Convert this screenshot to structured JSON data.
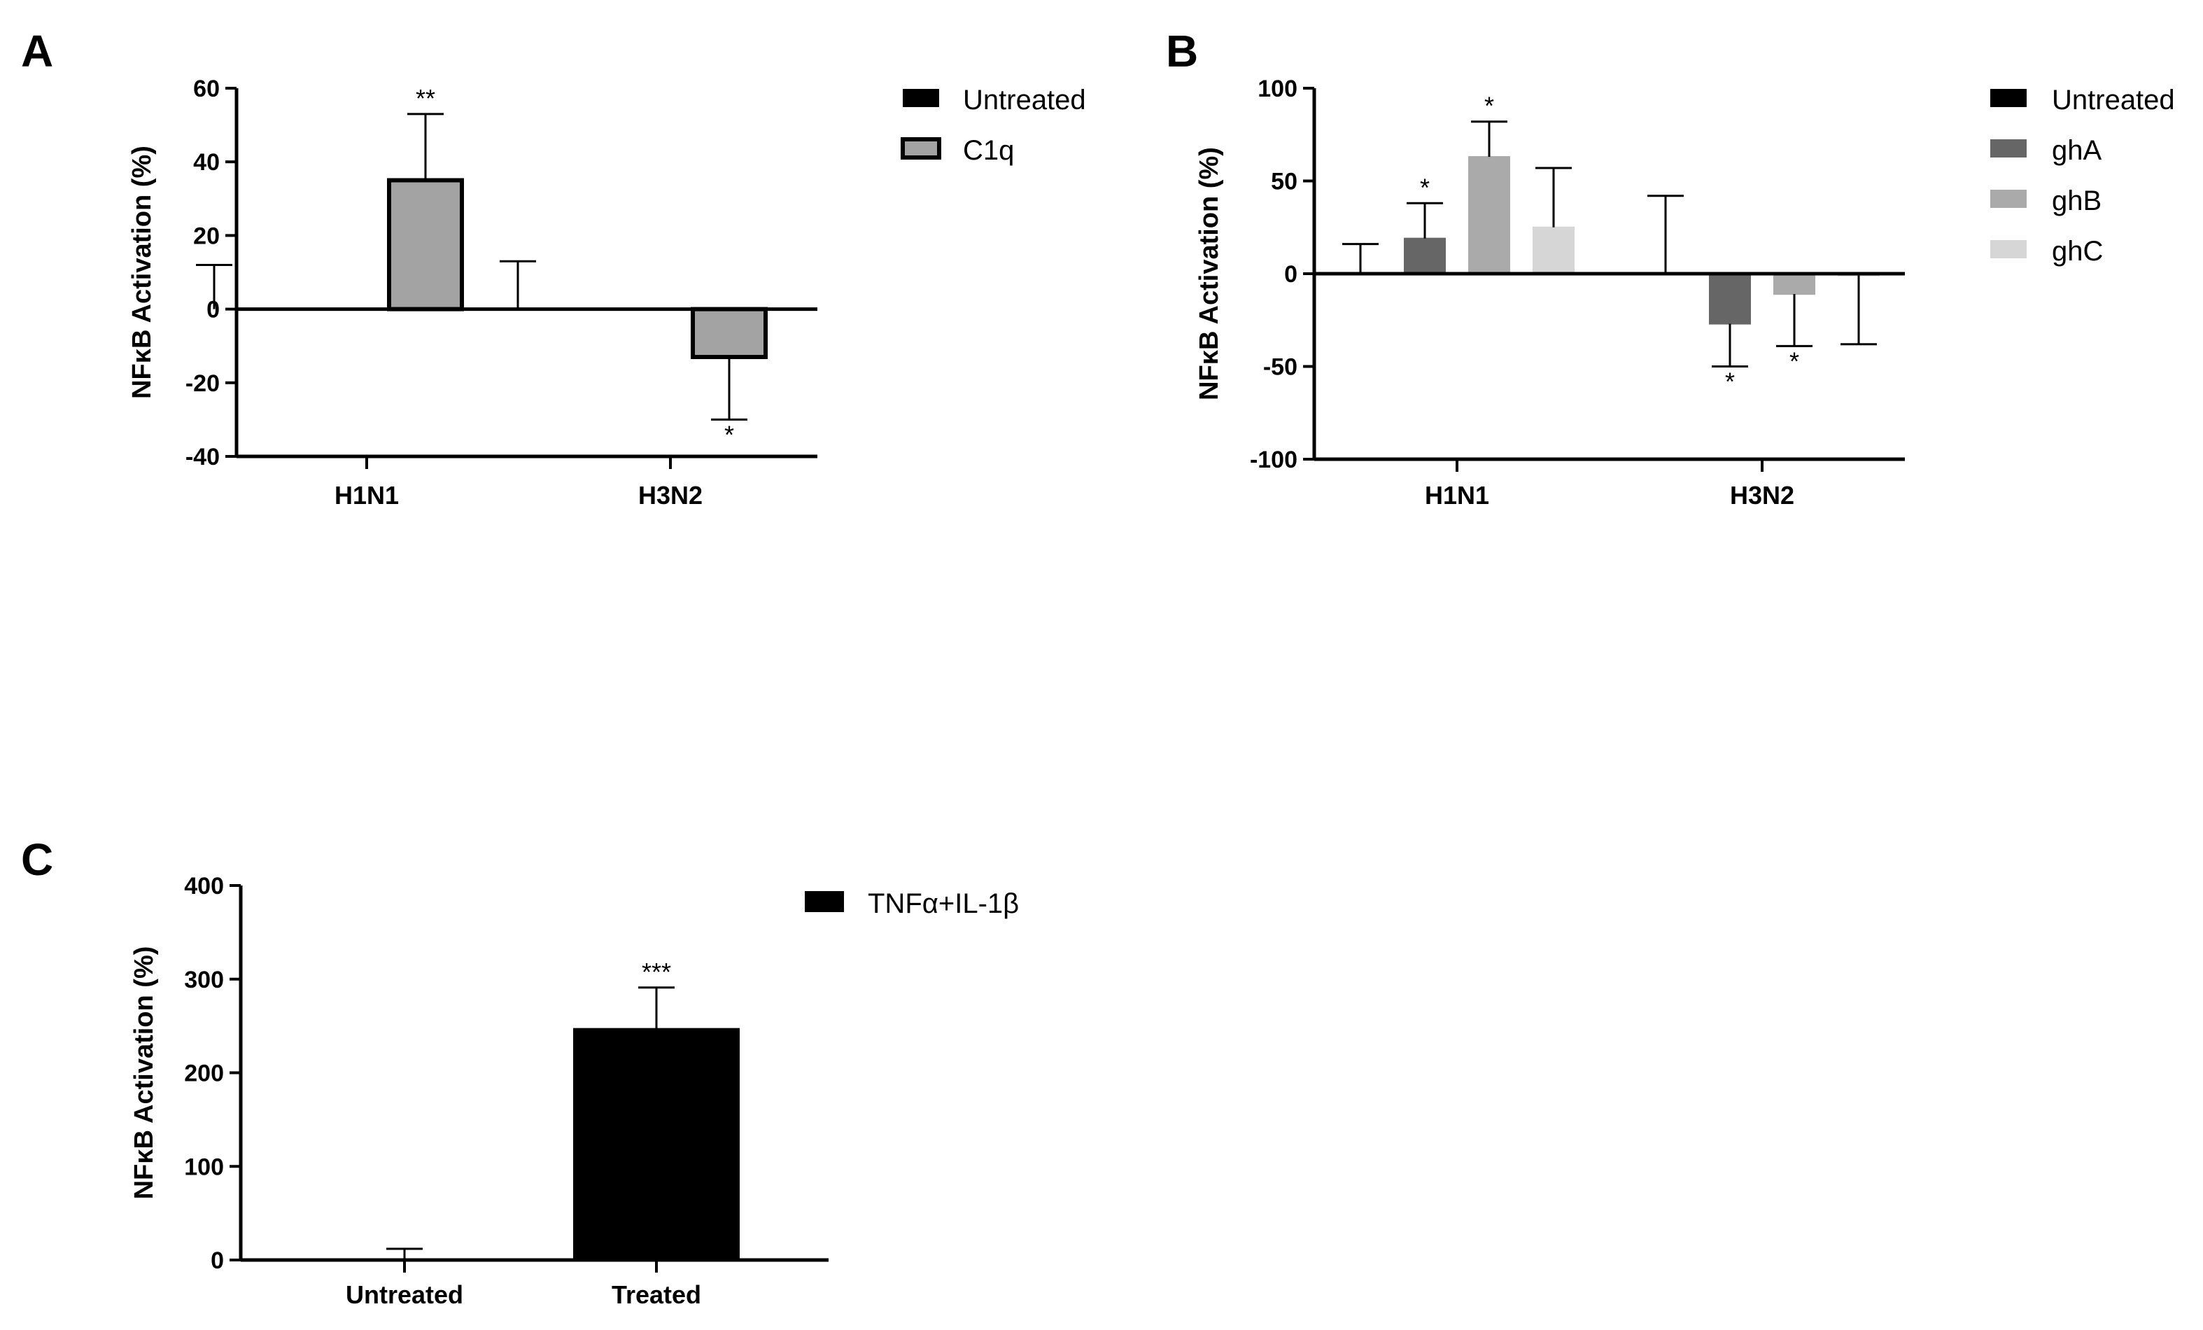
{
  "chart_data": [
    {
      "panel": "A",
      "type": "bar",
      "title": "",
      "xlabel": "",
      "ylabel": "NFκB Activation (%)",
      "ylim": [
        -40,
        60
      ],
      "yticks": [
        -40,
        -20,
        0,
        20,
        40,
        60
      ],
      "categories": [
        "H1N1",
        "H3N2"
      ],
      "legend_position": "top-right",
      "series": [
        {
          "name": "Untreated",
          "color": "#000000",
          "values": [
            0,
            0
          ],
          "errors": [
            12,
            13
          ],
          "significance": [
            "",
            ""
          ]
        },
        {
          "name": "C1q",
          "color": "#a3a3a3",
          "values": [
            35,
            -13
          ],
          "errors": [
            18,
            17
          ],
          "significance": [
            "**",
            "*"
          ]
        }
      ]
    },
    {
      "panel": "B",
      "type": "bar",
      "title": "",
      "xlabel": "",
      "ylabel": "NFκB Activation (%)",
      "ylim": [
        -100,
        100
      ],
      "yticks": [
        -100,
        -50,
        0,
        50,
        100
      ],
      "categories": [
        "H1N1",
        "H3N2"
      ],
      "legend_position": "top-right",
      "series": [
        {
          "name": "Untreated",
          "color": "#000000",
          "values": [
            0,
            0
          ],
          "errors": [
            16,
            42
          ],
          "significance": [
            "",
            ""
          ]
        },
        {
          "name": "ghA",
          "color": "#666666",
          "values": [
            19,
            -27
          ],
          "errors": [
            19,
            23
          ],
          "significance": [
            "*",
            "*"
          ]
        },
        {
          "name": "ghB",
          "color": "#aaaaaa",
          "values": [
            63,
            -11
          ],
          "errors": [
            19,
            28
          ],
          "significance": [
            "*",
            "*"
          ]
        },
        {
          "name": "ghC",
          "color": "#d6d6d6",
          "values": [
            25,
            -1
          ],
          "errors": [
            32,
            37
          ],
          "significance": [
            "",
            ""
          ]
        }
      ]
    },
    {
      "panel": "C",
      "type": "bar",
      "title": "",
      "xlabel": "",
      "ylabel": "NFκB Activation (%)",
      "ylim": [
        0,
        400
      ],
      "yticks": [
        0,
        100,
        200,
        300,
        400
      ],
      "categories": [
        "Untreated",
        "Treated"
      ],
      "legend_position": "top-right",
      "series": [
        {
          "name": "TNFα+IL-1β",
          "color": "#000000",
          "values": [
            0,
            247
          ],
          "errors": [
            12,
            44
          ],
          "significance": [
            "",
            "***"
          ]
        }
      ]
    }
  ]
}
